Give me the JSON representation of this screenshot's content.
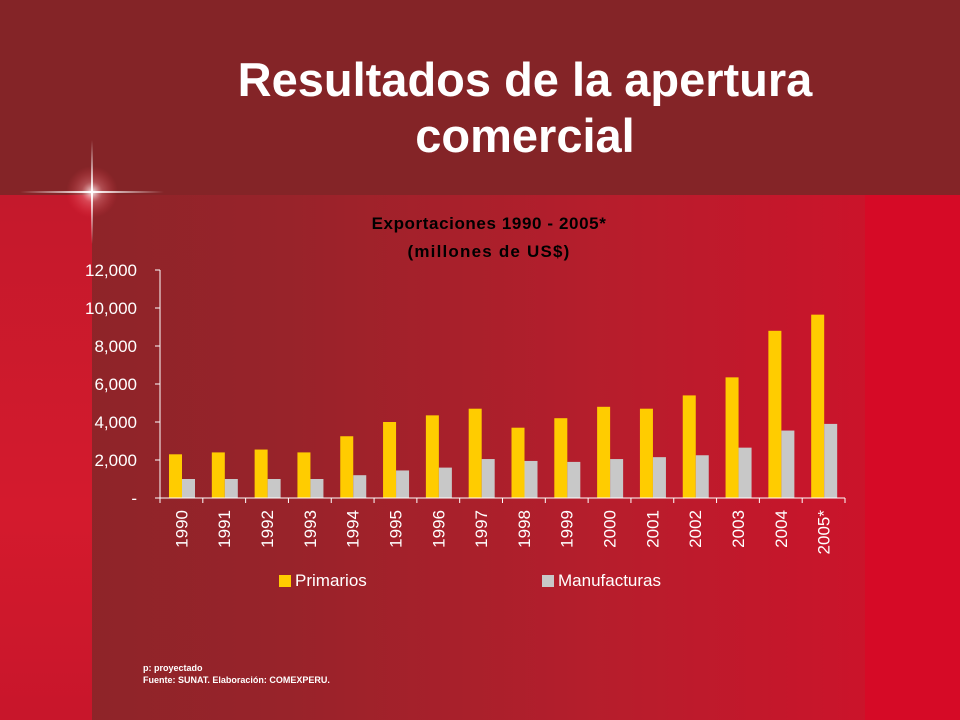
{
  "slide": {
    "title_line1": "Resultados de la apertura",
    "title_line2": "comercial",
    "footnote_projected": "p: proyectado",
    "footnote_source": "Fuente: SUNAT. Elaboración: COMEXPERU."
  },
  "colors": {
    "primarios": "#ffcc00",
    "manufacturas": "#c8c8c8",
    "text": "#ffffff",
    "chart_title": "#000000",
    "axis": "#ffffff"
  },
  "chart_data": {
    "type": "bar",
    "title": "Exportaciones 1990 - 2005*",
    "subtitle": "(millones de US$)",
    "categories": [
      "1990",
      "1991",
      "1992",
      "1993",
      "1994",
      "1995",
      "1996",
      "1997",
      "1998",
      "1999",
      "2000",
      "2001",
      "2002",
      "2003",
      "2004",
      "2005*"
    ],
    "series": [
      {
        "name": "Primarios",
        "values": [
          2300,
          2400,
          2550,
          2400,
          3250,
          4000,
          4350,
          4700,
          3700,
          4200,
          4800,
          4700,
          5400,
          6350,
          8800,
          9650
        ]
      },
      {
        "name": "Manufacturas",
        "values": [
          1000,
          1000,
          1000,
          1000,
          1200,
          1450,
          1600,
          2050,
          1950,
          1900,
          2050,
          2150,
          2250,
          2650,
          3550,
          3900
        ]
      }
    ],
    "ylim": [
      0,
      12000
    ],
    "yticks": [
      {
        "value": 0,
        "label": "-"
      },
      {
        "value": 2000,
        "label": "2,000"
      },
      {
        "value": 4000,
        "label": "4,000"
      },
      {
        "value": 6000,
        "label": "6,000"
      },
      {
        "value": 8000,
        "label": "8,000"
      },
      {
        "value": 10000,
        "label": "10,000"
      },
      {
        "value": 12000,
        "label": "12,000"
      }
    ],
    "grid": false,
    "legend": "bottom"
  }
}
